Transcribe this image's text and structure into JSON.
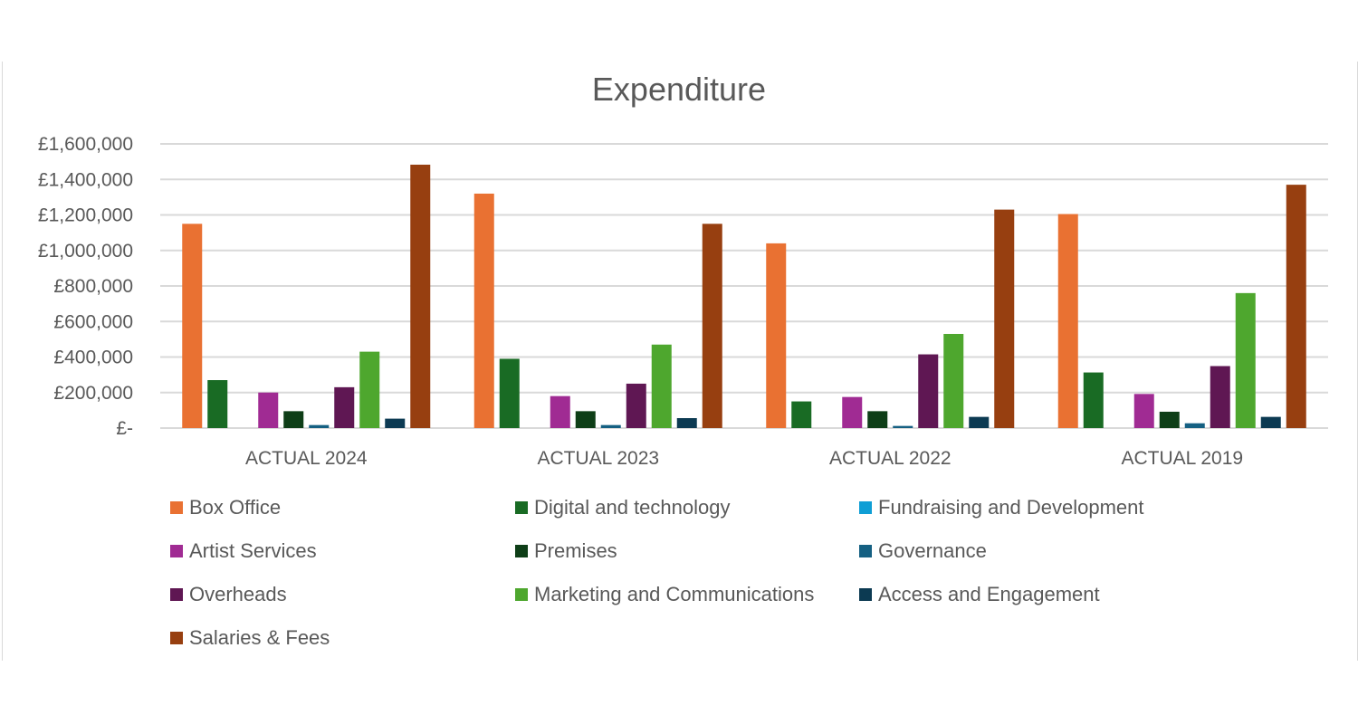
{
  "chart_data": {
    "type": "bar",
    "title": "Expenditure",
    "xlabel": "",
    "ylabel": "",
    "ylim": [
      0,
      1600000
    ],
    "yticks": [
      0,
      200000,
      400000,
      600000,
      800000,
      1000000,
      1200000,
      1400000,
      1600000
    ],
    "ytick_labels": [
      "£-",
      "£200,000",
      "£400,000",
      "£600,000",
      "£800,000",
      "£1,000,000",
      "£1,200,000",
      "£1,400,000",
      "£1,600,000"
    ],
    "grid": true,
    "legend_position": "bottom",
    "categories": [
      "ACTUAL 2024",
      "ACTUAL 2023",
      "ACTUAL 2022",
      "ACTUAL 2019"
    ],
    "series": [
      {
        "name": "Box Office",
        "color": "#E97132",
        "values": [
          1150000,
          1320000,
          1040000,
          1205000
        ]
      },
      {
        "name": "Digital and technology",
        "color": "#196B24",
        "values": [
          270000,
          390000,
          150000,
          313000
        ]
      },
      {
        "name": "Fundraising and Development",
        "color": "#0F9ED5",
        "values": [
          0,
          0,
          0,
          0
        ]
      },
      {
        "name": "Artist Services",
        "color": "#A02B93",
        "values": [
          200000,
          180000,
          175000,
          192000
        ]
      },
      {
        "name": "Premises",
        "color": "#0E3E17",
        "values": [
          95000,
          95000,
          95000,
          92000
        ]
      },
      {
        "name": "Governance",
        "color": "#156082",
        "values": [
          17000,
          17000,
          12000,
          27000
        ]
      },
      {
        "name": "Overheads",
        "color": "#5F1753",
        "values": [
          230000,
          250000,
          415000,
          349000
        ]
      },
      {
        "name": "Marketing and Communications",
        "color": "#4EA72E",
        "values": [
          430000,
          470000,
          530000,
          760000
        ]
      },
      {
        "name": "Access and Engagement",
        "color": "#0C3A52",
        "values": [
          53000,
          56000,
          63000,
          63000
        ]
      },
      {
        "name": "Salaries & Fees",
        "color": "#973F10",
        "values": [
          1483000,
          1150000,
          1230000,
          1370000
        ]
      }
    ]
  }
}
